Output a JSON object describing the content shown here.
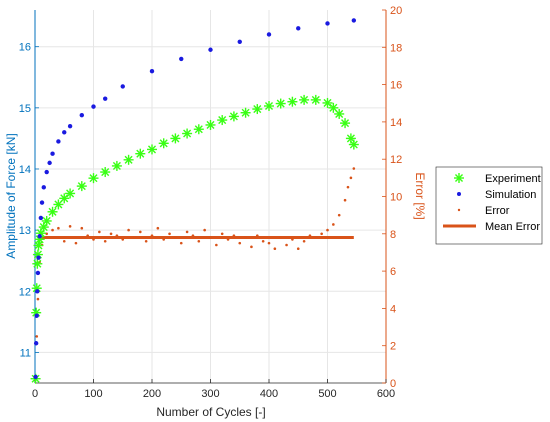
{
  "chart_data": {
    "type": "scatter",
    "xlabel": "Number of Cycles [-]",
    "ylabel_left": "Amplitude of Force [kN]",
    "ylabel_right": "Error [%]",
    "xlim": [
      0,
      600
    ],
    "ylim_left": [
      10.5,
      16.6
    ],
    "ylim_right": [
      0,
      20
    ],
    "x_ticks": [
      "0",
      "100",
      "200",
      "300",
      "400",
      "500",
      "600"
    ],
    "y_left_ticks": [
      "11",
      "12",
      "13",
      "14",
      "15",
      "16"
    ],
    "y_right_ticks": [
      "0",
      "2",
      "4",
      "6",
      "8",
      "10",
      "12",
      "14",
      "16",
      "18",
      "20"
    ],
    "grid": true,
    "legend_position": "right-outside",
    "colors": {
      "experiment": "#39ff14",
      "simulation": "#1a1ae0",
      "error": "#d95319",
      "mean_error": "#d95319",
      "left_axis": "#0072bd",
      "right_axis": "#d95319"
    },
    "series": [
      {
        "name": "Experiment",
        "axis": "left",
        "marker": "asterisk",
        "x": [
          1,
          2,
          3,
          4,
          5,
          6,
          8,
          10,
          15,
          20,
          30,
          40,
          50,
          60,
          80,
          100,
          120,
          140,
          160,
          180,
          200,
          220,
          240,
          260,
          280,
          300,
          320,
          340,
          360,
          380,
          400,
          420,
          440,
          460,
          480,
          500,
          510,
          520,
          530,
          540,
          545
        ],
        "y": [
          10.57,
          11.65,
          12.05,
          12.45,
          12.6,
          12.75,
          12.85,
          12.95,
          13.05,
          13.15,
          13.3,
          13.42,
          13.52,
          13.6,
          13.72,
          13.85,
          13.95,
          14.05,
          14.15,
          14.25,
          14.32,
          14.42,
          14.5,
          14.58,
          14.65,
          14.72,
          14.8,
          14.86,
          14.92,
          14.98,
          15.03,
          15.07,
          15.1,
          15.13,
          15.13,
          15.08,
          15.0,
          14.9,
          14.75,
          14.5,
          14.4
        ]
      },
      {
        "name": "Simulation",
        "axis": "left",
        "marker": "dot",
        "x": [
          1,
          2,
          3,
          4,
          5,
          6,
          8,
          10,
          12,
          15,
          20,
          25,
          30,
          40,
          50,
          60,
          80,
          100,
          120,
          150,
          200,
          250,
          300,
          350,
          400,
          450,
          500,
          545
        ],
        "y": [
          10.6,
          11.15,
          11.6,
          12.0,
          12.3,
          12.55,
          12.9,
          13.2,
          13.45,
          13.7,
          13.95,
          14.1,
          14.25,
          14.45,
          14.6,
          14.7,
          14.88,
          15.02,
          15.15,
          15.35,
          15.6,
          15.8,
          15.95,
          16.08,
          16.2,
          16.3,
          16.38,
          16.43
        ]
      },
      {
        "name": "Error",
        "axis": "right",
        "marker": "point",
        "x": [
          1,
          3,
          5,
          8,
          12,
          15,
          20,
          30,
          40,
          50,
          60,
          70,
          80,
          90,
          100,
          110,
          120,
          130,
          140,
          150,
          160,
          170,
          180,
          190,
          200,
          210,
          220,
          230,
          240,
          250,
          260,
          270,
          280,
          290,
          300,
          310,
          320,
          330,
          340,
          350,
          360,
          370,
          380,
          390,
          400,
          410,
          420,
          430,
          440,
          450,
          460,
          470,
          480,
          490,
          500,
          510,
          520,
          530,
          535,
          540,
          545
        ],
        "y": [
          0.3,
          2.5,
          4.5,
          6.5,
          7.4,
          7.8,
          8.0,
          8.2,
          8.3,
          7.6,
          8.4,
          7.5,
          8.3,
          7.9,
          7.7,
          8.1,
          7.6,
          8.0,
          7.9,
          7.7,
          8.2,
          7.8,
          8.1,
          7.6,
          7.9,
          8.3,
          7.7,
          8.0,
          7.8,
          7.5,
          8.1,
          7.9,
          7.6,
          8.2,
          7.8,
          7.4,
          8.0,
          7.7,
          7.9,
          7.5,
          7.8,
          7.3,
          7.9,
          7.6,
          7.5,
          7.2,
          7.8,
          7.4,
          7.7,
          7.2,
          7.6,
          7.9,
          7.8,
          8.0,
          8.2,
          8.5,
          9.0,
          9.8,
          10.5,
          11.0,
          11.5
        ]
      },
      {
        "name": "Mean Error",
        "axis": "right",
        "marker": "line",
        "x": [
          5,
          545
        ],
        "y": [
          7.8,
          7.8
        ]
      }
    ]
  }
}
